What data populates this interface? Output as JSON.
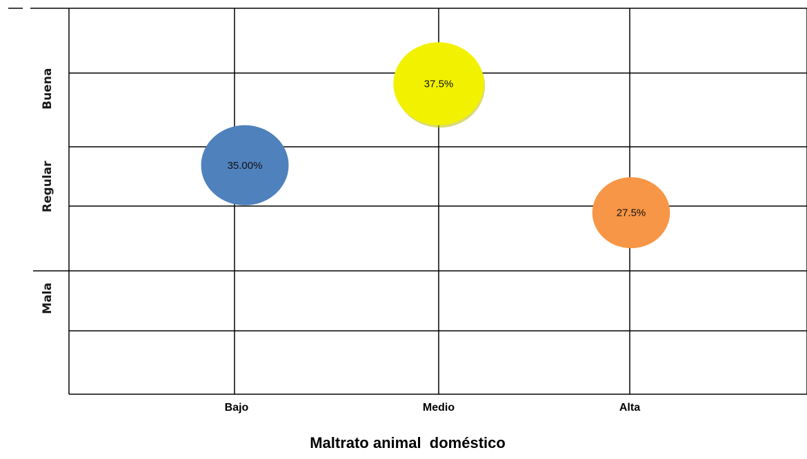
{
  "chart_data": {
    "type": "scatter",
    "title": "",
    "xlabel": "Maltrato animal  doméstico",
    "ylabel": "",
    "categories": [
      "Bajo",
      "Medio",
      "Alta"
    ],
    "y_categories": [
      "Mala",
      "Regular",
      "Buena"
    ],
    "grid": true,
    "legend": "none",
    "points": [
      {
        "x": "Bajo",
        "y": 2.42,
        "label": "35.00%",
        "value": 35.0,
        "color": "#4f81bd"
      },
      {
        "x": "Medio",
        "y": 3.25,
        "label": "37.5%",
        "value": 37.5,
        "color": "#f2f200"
      },
      {
        "x": "Alta",
        "y": 1.93,
        "label": "27.5%",
        "value": 27.5,
        "color": "#f79646"
      }
    ]
  }
}
